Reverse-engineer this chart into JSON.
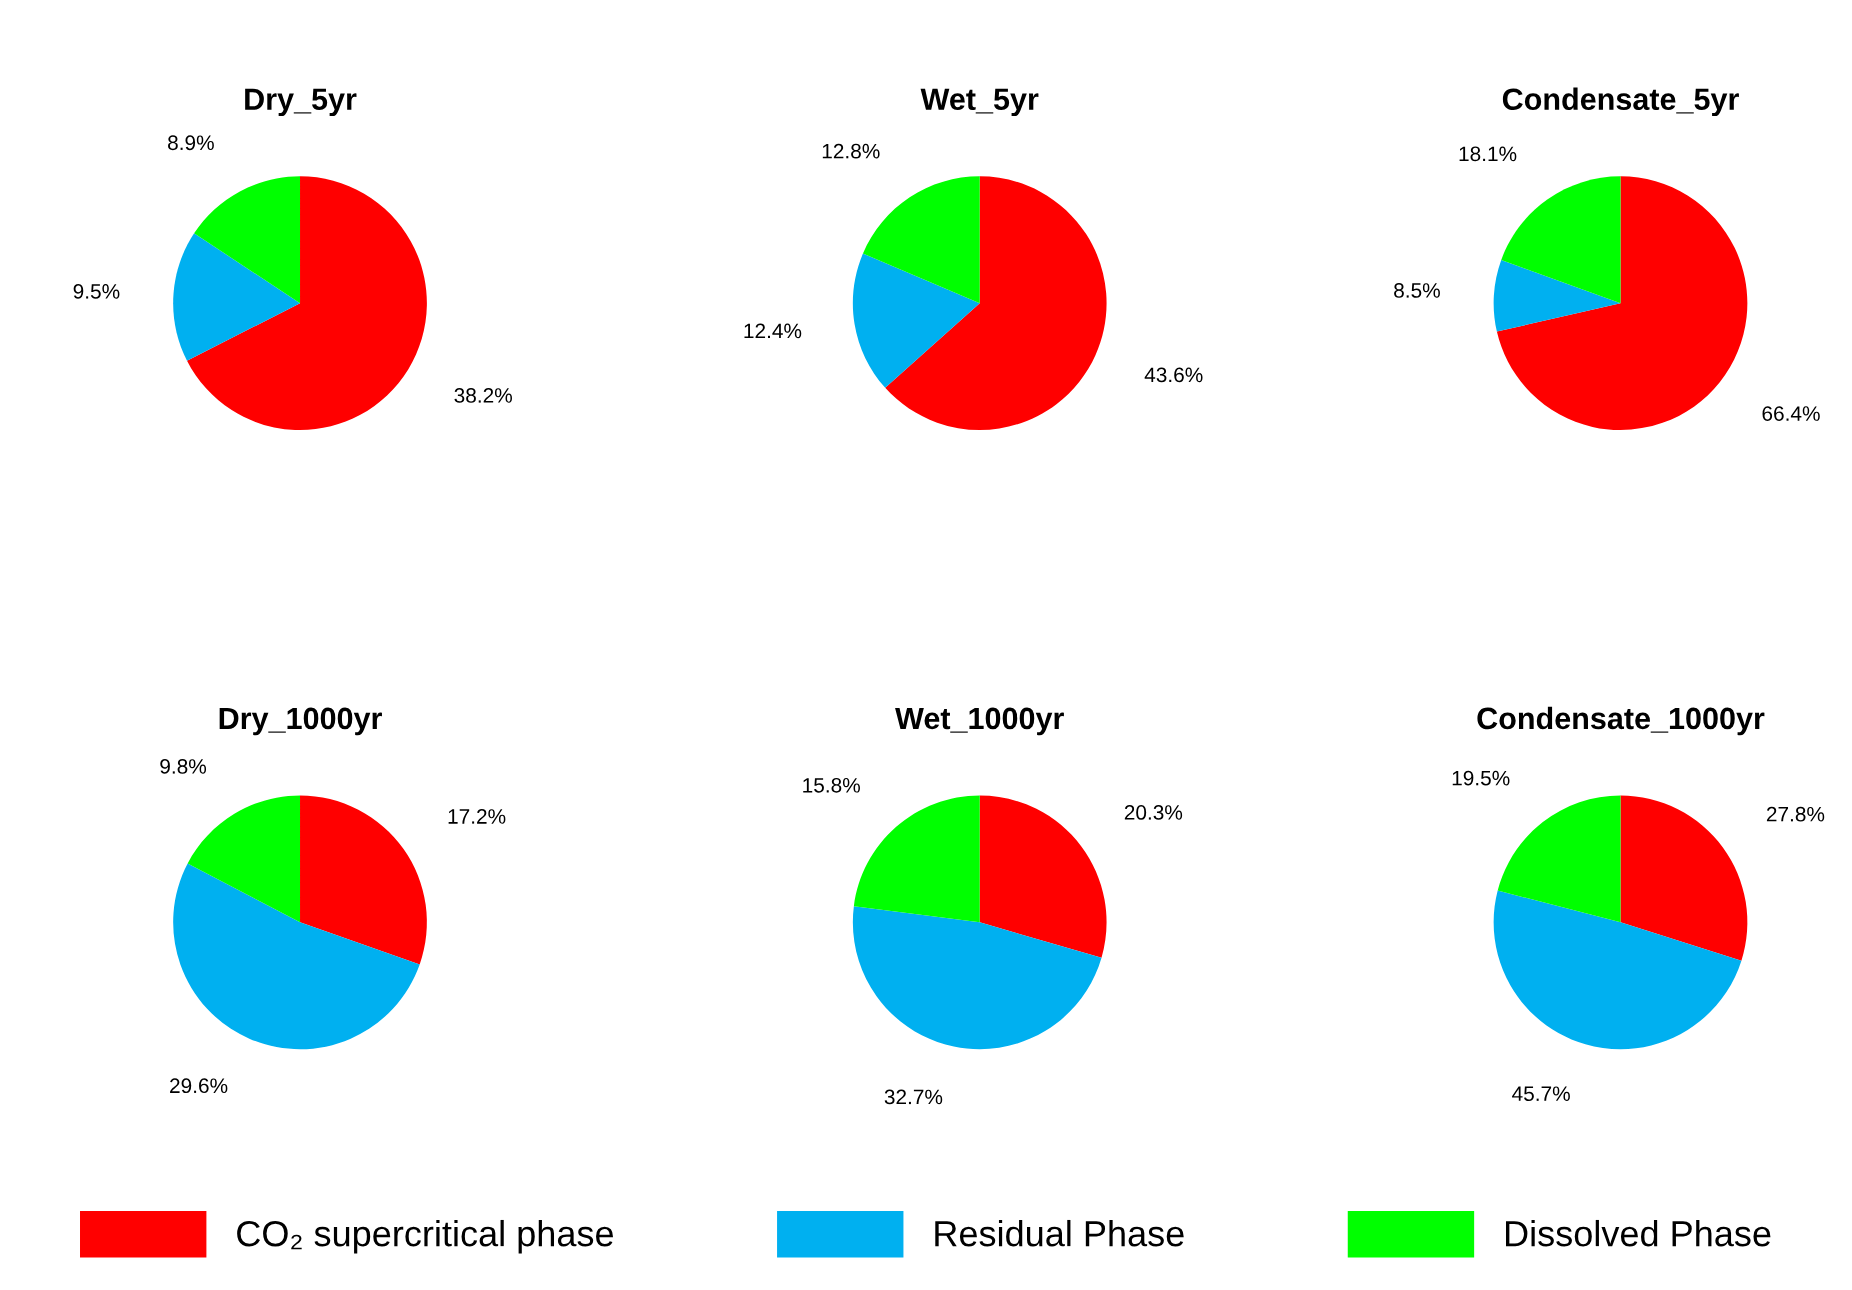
{
  "chart_data": [
    {
      "type": "pie",
      "title": "Dry_5yr",
      "categories": [
        "CO₂ supercritical phase",
        "Residual Phase",
        "Dissolved Phase"
      ],
      "values": [
        38.2,
        9.5,
        8.9
      ],
      "colors": [
        "#ff0000",
        "#00b0f0",
        "#00ff00"
      ],
      "value_labels": [
        "38.2%",
        "9.5%",
        "8.9%"
      ],
      "legend": "bottom"
    },
    {
      "type": "pie",
      "title": "Wet_5yr",
      "categories": [
        null,
        null,
        null
      ],
      "values": [
        43.6,
        12.4,
        12.8
      ],
      "colors": [
        "#ff0000",
        "#00b0f0",
        "#00ff00"
      ],
      "value_labels": [
        "43.6%",
        "12.4%",
        "12.8%"
      ]
    },
    {
      "type": "pie",
      "title": "Condensate_5yr",
      "categories": [
        null,
        null,
        null
      ],
      "values": [
        66.4,
        8.5,
        18.1
      ],
      "colors": [
        "#ff0000",
        "#00b0f0",
        "#00ff00"
      ],
      "value_labels": [
        "66.4%",
        "8.5%",
        "18.1%"
      ]
    },
    {
      "type": "pie",
      "title": "Dry_1000yr",
      "categories": [
        null,
        null,
        null
      ],
      "values": [
        17.2,
        29.6,
        9.8
      ],
      "colors": [
        "#ff0000",
        "#00b0f0",
        "#00ff00"
      ],
      "value_labels": [
        "17.2%",
        "29.6%",
        "9.8%"
      ]
    },
    {
      "type": "pie",
      "title": "Wet_1000yr",
      "categories": [
        null,
        null,
        null
      ],
      "values": [
        20.3,
        32.7,
        15.8
      ],
      "colors": [
        "#ff0000",
        "#00b0f0",
        "#00ff00"
      ],
      "value_labels": [
        "20.3%",
        "32.7%",
        "15.8%"
      ]
    },
    {
      "type": "pie",
      "title": "Condensate_1000yr",
      "categories": [
        null,
        null,
        null
      ],
      "values": [
        27.8,
        45.7,
        19.5
      ],
      "colors": [
        "#ff0000",
        "#00b0f0",
        "#00ff00"
      ],
      "value_labels": [
        "27.8%",
        "45.7%",
        "19.5%"
      ]
    }
  ]
}
